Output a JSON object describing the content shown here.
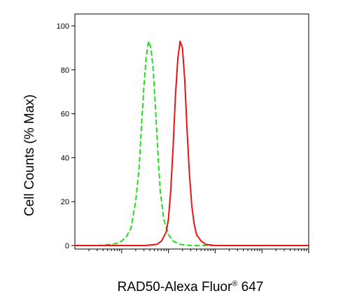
{
  "chart_data": {
    "type": "line",
    "xlabel": "RAD50-Alexa Fluor",
    "xlabel_mark": "®",
    "xlabel_suffix": " 647",
    "ylabel": "Cell Counts (% Max)",
    "ylim": [
      0,
      100
    ],
    "xlim": [
      0,
      100
    ],
    "x_scale": "log (unlabeled decades)",
    "y_ticks": [
      "100",
      "80",
      "60",
      "40",
      "20",
      "0"
    ],
    "y_tick_values": [
      100,
      80,
      60,
      40,
      20,
      0
    ],
    "grid": false,
    "legend": "none",
    "series": [
      {
        "style": "dashed",
        "color": "#22dd22",
        "x": [
          0,
          10,
          15,
          18,
          20,
          22,
          24,
          26,
          27.5,
          28.5,
          29.5,
          30.5,
          31.5,
          32.5,
          33.5,
          34.5,
          35.5,
          36.5,
          38,
          40,
          42,
          45,
          50,
          60,
          80,
          100
        ],
        "y": [
          0,
          0,
          0.5,
          1,
          2,
          4,
          8,
          20,
          36,
          55,
          72,
          86,
          93,
          90,
          80,
          62,
          42,
          25,
          12,
          5,
          2,
          0.5,
          0,
          0,
          0,
          0
        ]
      },
      {
        "style": "solid",
        "color": "#ee1111",
        "x": [
          0,
          30,
          35,
          37,
          39,
          40,
          41,
          42,
          43,
          44,
          45,
          46,
          47,
          48,
          49,
          50,
          51,
          52,
          54,
          56,
          60,
          70,
          100
        ],
        "y": [
          0,
          0,
          0.5,
          2,
          6,
          12,
          25,
          45,
          68,
          85,
          93,
          90,
          75,
          52,
          32,
          18,
          10,
          5,
          2,
          0.5,
          0,
          0,
          0
        ]
      }
    ]
  }
}
